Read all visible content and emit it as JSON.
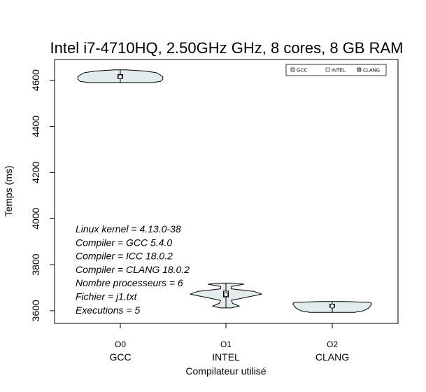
{
  "chart_data": {
    "type": "violin",
    "title": "Intel i7-4710HQ, 2.50GHz GHz, 8 cores, 8 GB RAM",
    "xlabel": "Compilateur utilisé",
    "ylabel": "Temps (ms)",
    "ylim": [
      3545,
      4690
    ],
    "yticks": [
      "3600",
      "3800",
      "4000",
      "4200",
      "4400",
      "4600"
    ],
    "categories": [
      {
        "sub": "O0",
        "name": "GCC"
      },
      {
        "sub": "O1",
        "name": "INTEL"
      },
      {
        "sub": "O2",
        "name": "CLANG"
      }
    ],
    "legend": {
      "placement": "top-right",
      "entries": [
        {
          "label": "GCC",
          "color": "#cccccc"
        },
        {
          "label": "INTEL",
          "color": "#ffffff"
        },
        {
          "label": "CLANG",
          "color": "#9a9a9a"
        }
      ]
    },
    "violin_fill": "#e2ecec",
    "series": [
      {
        "min": 4590,
        "max": 4645,
        "median": 4615,
        "q1": 4608,
        "q3": 4625,
        "density": [
          [
            4590,
            0.72
          ],
          [
            4595,
            0.9
          ],
          [
            4605,
            0.95
          ],
          [
            4615,
            0.95
          ],
          [
            4625,
            0.88
          ],
          [
            4633,
            0.8
          ],
          [
            4640,
            0.55
          ],
          [
            4645,
            0.12
          ]
        ]
      },
      {
        "min": 3612,
        "max": 3720,
        "median": 3670,
        "q1": 3660,
        "q3": 3685,
        "density": [
          [
            3612,
            0.12
          ],
          [
            3620,
            0.3
          ],
          [
            3632,
            0.15
          ],
          [
            3645,
            0.12
          ],
          [
            3660,
            0.5
          ],
          [
            3672,
            0.8
          ],
          [
            3684,
            0.62
          ],
          [
            3695,
            0.12
          ],
          [
            3705,
            0.12
          ],
          [
            3715,
            0.4
          ],
          [
            3720,
            0.12
          ]
        ]
      },
      {
        "min": 3593,
        "max": 3640,
        "median": 3620,
        "q1": 3615,
        "q3": 3628,
        "density": [
          [
            3593,
            0.5
          ],
          [
            3600,
            0.7
          ],
          [
            3610,
            0.8
          ],
          [
            3620,
            0.85
          ],
          [
            3630,
            0.88
          ],
          [
            3636,
            0.85
          ],
          [
            3640,
            0.25
          ]
        ]
      }
    ],
    "annotations": [
      "Linux kernel = 4.13.0-38",
      "Compiler = GCC 5.4.0",
      "Compiler = ICC 18.0.2",
      "Compiler = CLANG 18.0.2",
      "Nombre processeurs = 6",
      "Fichier = j1.txt",
      "Executions = 5"
    ]
  }
}
